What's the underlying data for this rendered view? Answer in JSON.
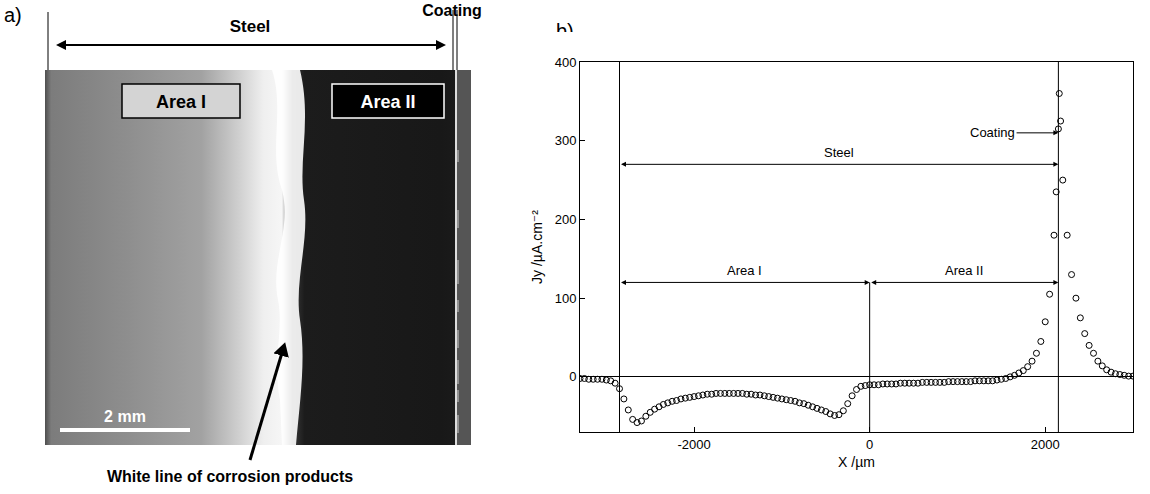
{
  "photo": {
    "label": "a)",
    "steel": "Steel",
    "coating": "Coating",
    "area_1": "Area I",
    "area_2": "Area II",
    "scale_bar": "2 mm",
    "arrow_label": "White line of corrosion products"
  },
  "chart_data": {
    "label": "b)",
    "type": "scatter",
    "marker": "open circle",
    "color": "#000000",
    "x_label": "X /µm",
    "y_label": "Jy /µA.cm⁻²",
    "x": [
      -3300,
      -3250,
      -3200,
      -3150,
      -3100,
      -3050,
      -3000,
      -2950,
      -2900,
      -2850,
      -2800,
      -2750,
      -2700,
      -2650,
      -2600,
      -2550,
      -2500,
      -2450,
      -2400,
      -2350,
      -2300,
      -2250,
      -2200,
      -2150,
      -2100,
      -2050,
      -2000,
      -1950,
      -1900,
      -1850,
      -1800,
      -1750,
      -1700,
      -1650,
      -1600,
      -1550,
      -1500,
      -1450,
      -1400,
      -1350,
      -1300,
      -1250,
      -1200,
      -1150,
      -1100,
      -1050,
      -1000,
      -950,
      -900,
      -850,
      -800,
      -750,
      -700,
      -650,
      -600,
      -550,
      -500,
      -450,
      -400,
      -350,
      -300,
      -250,
      -200,
      -150,
      -100,
      -50,
      0,
      50,
      100,
      150,
      200,
      250,
      300,
      350,
      400,
      450,
      500,
      550,
      600,
      650,
      700,
      750,
      800,
      850,
      900,
      950,
      1000,
      1050,
      1100,
      1150,
      1200,
      1250,
      1300,
      1350,
      1400,
      1450,
      1500,
      1550,
      1600,
      1650,
      1700,
      1750,
      1800,
      1850,
      1900,
      1950,
      2000,
      2050,
      2100,
      2125,
      2150,
      2160,
      2175,
      2200,
      2250,
      2300,
      2350,
      2400,
      2450,
      2500,
      2550,
      2600,
      2650,
      2700,
      2750,
      2800,
      2850,
      2900,
      2950,
      3000
    ],
    "values": [
      -2,
      -2,
      -3,
      -3,
      -3,
      -3,
      -4,
      -5,
      -8,
      -15,
      -28,
      -42,
      -54,
      -58,
      -56,
      -50,
      -45,
      -41,
      -38,
      -35,
      -33,
      -31,
      -30,
      -28,
      -27,
      -26,
      -25,
      -24,
      -23,
      -22,
      -22,
      -21,
      -21,
      -21,
      -21,
      -21,
      -21,
      -21,
      -22,
      -22,
      -23,
      -23,
      -24,
      -25,
      -26,
      -27,
      -28,
      -29,
      -30,
      -31,
      -33,
      -34,
      -36,
      -38,
      -40,
      -42,
      -44,
      -47,
      -49,
      -48,
      -43,
      -34,
      -24,
      -16,
      -12,
      -11,
      -10,
      -10,
      -10,
      -9,
      -9,
      -9,
      -9,
      -8,
      -8,
      -8,
      -8,
      -8,
      -7,
      -7,
      -7,
      -7,
      -7,
      -7,
      -6,
      -6,
      -6,
      -6,
      -6,
      -6,
      -5,
      -5,
      -5,
      -5,
      -5,
      -4,
      -3,
      -2,
      0,
      2,
      5,
      8,
      13,
      20,
      30,
      45,
      70,
      105,
      180,
      235,
      315,
      360,
      325,
      250,
      180,
      130,
      100,
      75,
      55,
      40,
      30,
      20,
      14,
      9,
      6,
      4,
      3,
      2,
      1,
      1
    ],
    "xlim": [
      -3300,
      3000
    ],
    "ylim": [
      -70,
      400
    ],
    "xticks": [
      -2000,
      0,
      2000
    ],
    "yticks": [
      0,
      100,
      200,
      300,
      400
    ],
    "grid": false,
    "spans": [
      {
        "text": "Steel",
        "x_range": [
          -2850,
          2150
        ],
        "y": 270
      },
      {
        "text": "Area I",
        "x_range": [
          -2850,
          0
        ],
        "y": 120
      },
      {
        "text": "Area II",
        "x_range": [
          0,
          2150
        ],
        "y": 120
      }
    ],
    "pointer": {
      "text": "Coating",
      "x": 2150,
      "y": 310,
      "text_x": 1400
    },
    "vertical_lines": [
      {
        "x": -2850
      },
      {
        "x": 0,
        "top": 120
      },
      {
        "x": 2150
      }
    ]
  }
}
